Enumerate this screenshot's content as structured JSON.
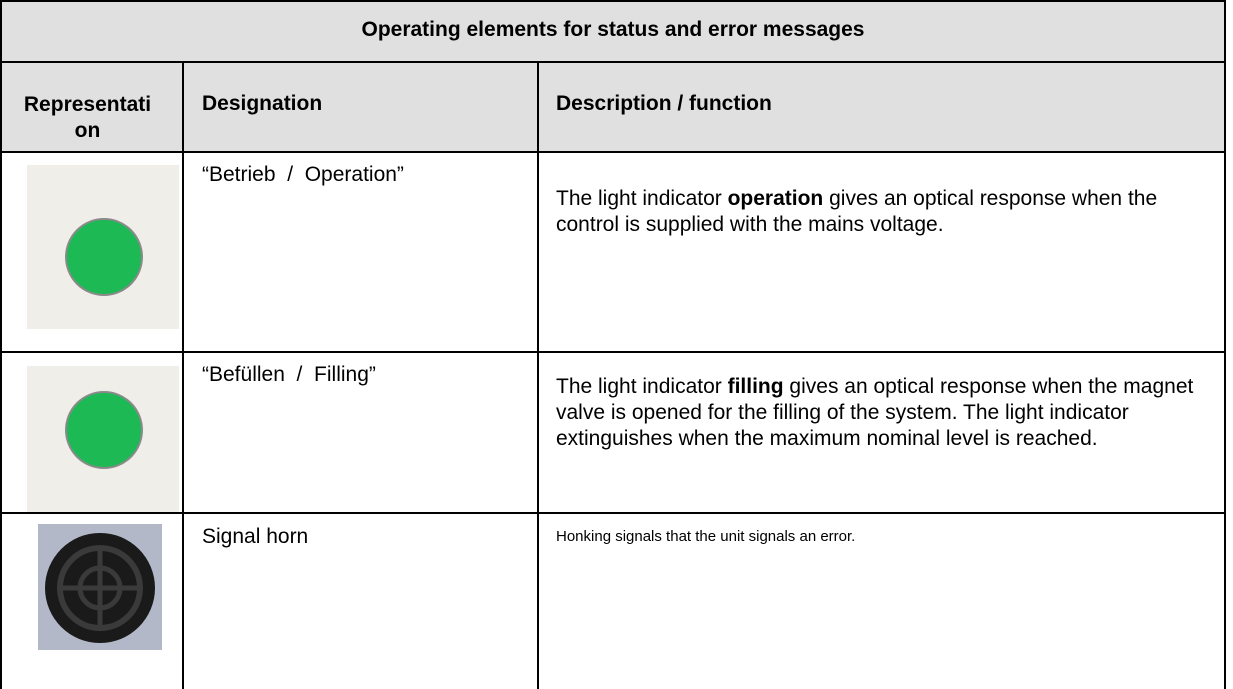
{
  "table": {
    "title": "Operating elements for status and error messages",
    "headers": [
      "Representation",
      "Designation",
      "Description / function"
    ],
    "rows": [
      {
        "designation": "“Betrieb  /  Operation”",
        "description": [
          "The light indicator ",
          "operation",
          " gives an optical response when the control is supplied with the mains voltage."
        ]
      },
      {
        "designation": "“Befüllen  /  Filling”",
        "description": [
          "The light indicator ",
          "filling",
          " gives an optical response when the magnet valve is opened for the filling of the system. The light indicator extinguishes when the maximum nominal level is reached."
        ]
      },
      {
        "designation": "Signal horn",
        "description": [
          "Honking signals that the unit signals an error."
        ]
      }
    ]
  }
}
